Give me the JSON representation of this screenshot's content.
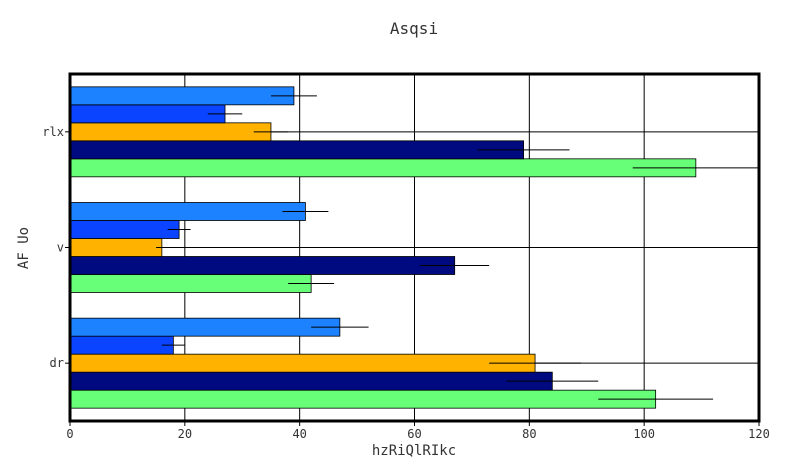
{
  "chart_data": {
    "type": "bar",
    "orientation": "horizontal",
    "title": "Asqsi",
    "xlabel": "hzRiQlRIkc",
    "ylabel": "AF Uo",
    "xlim": [
      0,
      120
    ],
    "xticks": [
      0,
      20,
      40,
      60,
      80,
      100,
      120
    ],
    "grid": true,
    "categories": [
      "dr",
      "v",
      "rlx"
    ],
    "series": [
      {
        "color": "#66ff77",
        "values": [
          102,
          42,
          109
        ],
        "errors": [
          10,
          4,
          11
        ]
      },
      {
        "color": "#000a80",
        "values": [
          84,
          67,
          79
        ],
        "errors": [
          8,
          6,
          8
        ]
      },
      {
        "color": "#ffb300",
        "values": [
          81,
          16,
          35
        ],
        "errors": [
          8,
          1,
          3
        ]
      },
      {
        "color": "#0a44ff",
        "values": [
          18,
          19,
          27
        ],
        "errors": [
          2,
          2,
          3
        ]
      },
      {
        "color": "#1c82ff",
        "values": [
          47,
          41,
          39
        ],
        "errors": [
          5,
          4,
          4
        ]
      }
    ]
  }
}
